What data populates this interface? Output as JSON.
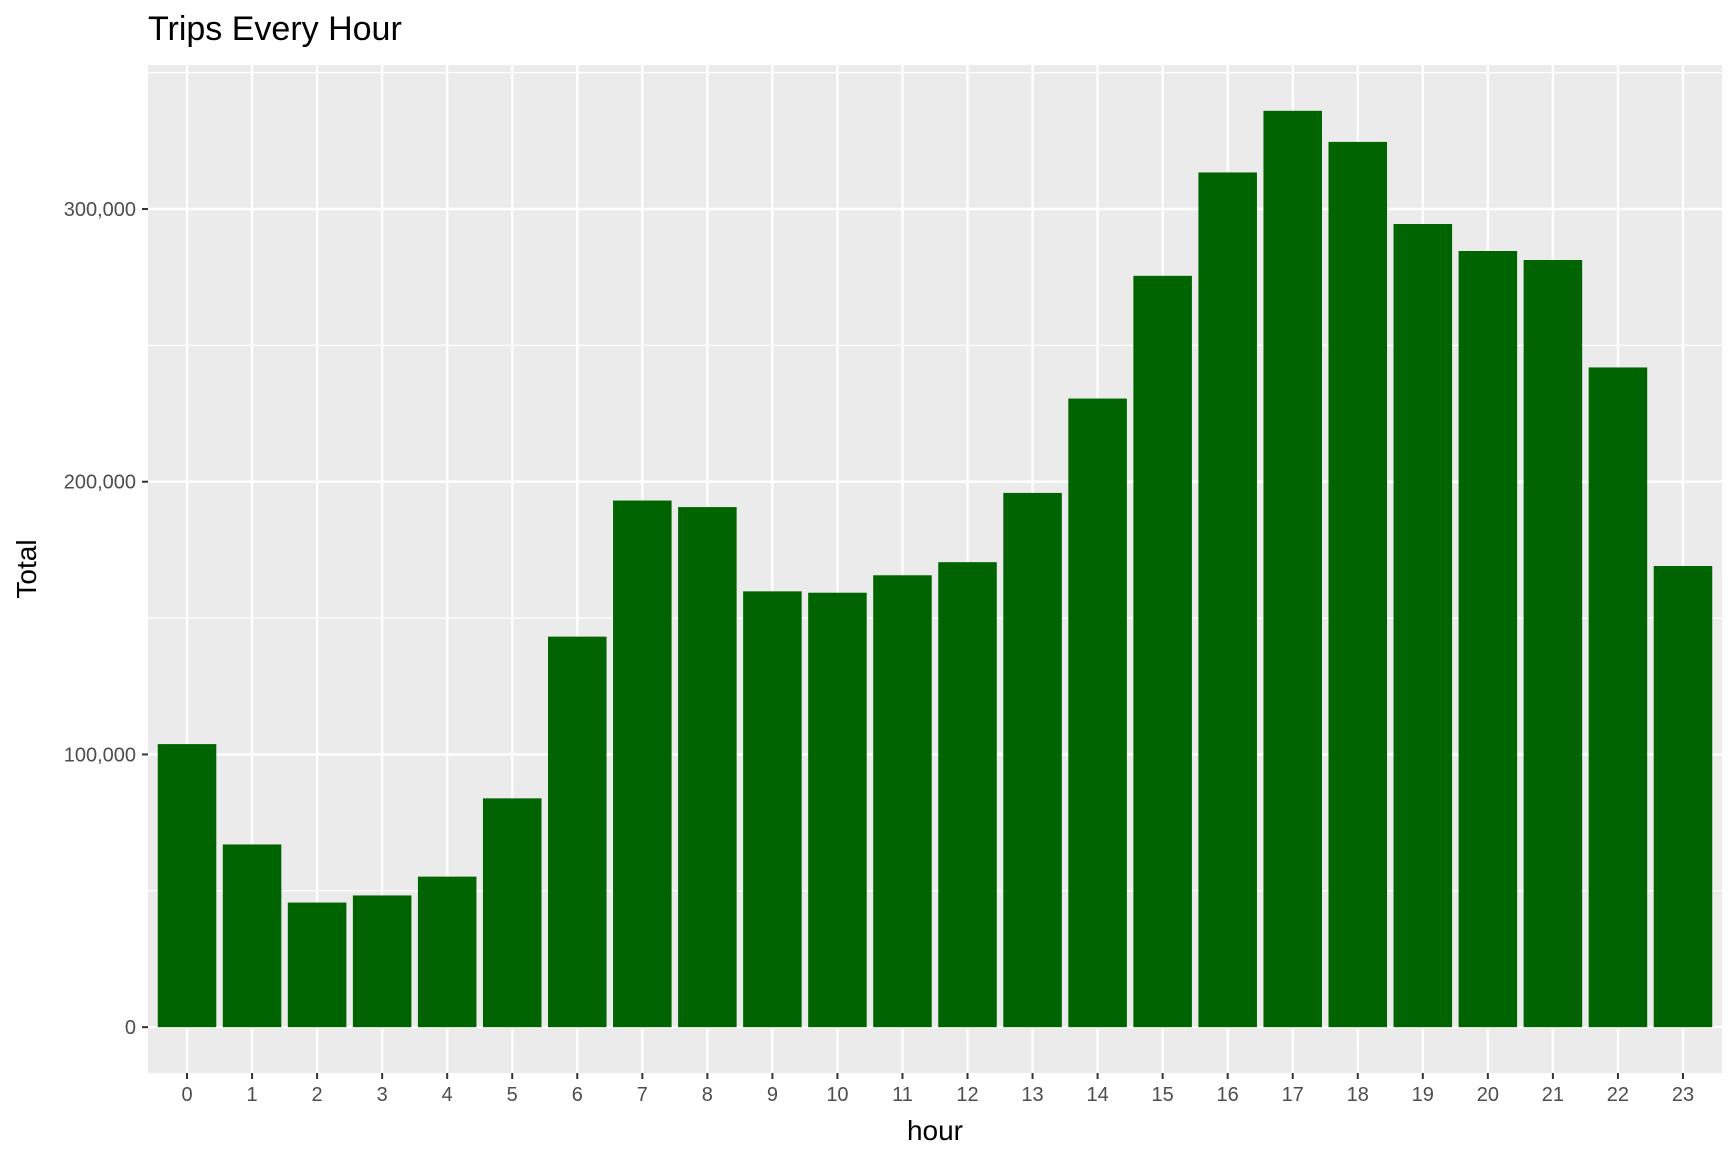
{
  "chart_data": {
    "type": "bar",
    "title": "Trips Every Hour",
    "xlabel": "hour",
    "ylabel": "Total",
    "categories": [
      "0",
      "1",
      "2",
      "3",
      "4",
      "5",
      "6",
      "7",
      "8",
      "9",
      "10",
      "11",
      "12",
      "13",
      "14",
      "15",
      "16",
      "17",
      "18",
      "19",
      "20",
      "21",
      "22",
      "23"
    ],
    "values": [
      103800,
      67000,
      45700,
      48300,
      55200,
      83900,
      143200,
      193100,
      190700,
      159800,
      159300,
      165700,
      170500,
      195900,
      230500,
      275500,
      313400,
      336000,
      324600,
      294500,
      284600,
      281300,
      241900,
      169100
    ],
    "yticks": [
      0,
      100000,
      200000,
      300000
    ],
    "ytick_labels": [
      "0",
      "100,000",
      "200,000",
      "300,000"
    ],
    "ylim": [
      -16800,
      352800
    ],
    "bar_color": "#006400",
    "panel_color": "#EBEBEB",
    "grid_color": "#FFFFFF",
    "grid": true,
    "legend": "none"
  }
}
